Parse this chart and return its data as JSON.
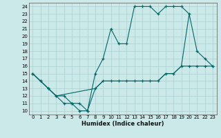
{
  "xlabel": "Humidex (Indice chaleur)",
  "bg_color": "#cce9e9",
  "grid_color": "#aad0d0",
  "line_color": "#006666",
  "xlim": [
    -0.5,
    23.5
  ],
  "ylim": [
    9.5,
    24.5
  ],
  "xticks": [
    0,
    1,
    2,
    3,
    4,
    5,
    6,
    7,
    8,
    9,
    10,
    11,
    12,
    13,
    14,
    15,
    16,
    17,
    18,
    19,
    20,
    21,
    22,
    23
  ],
  "yticks": [
    10,
    11,
    12,
    13,
    14,
    15,
    16,
    17,
    18,
    19,
    20,
    21,
    22,
    23,
    24
  ],
  "line1_x": [
    0,
    1,
    2,
    3,
    4,
    5,
    6,
    7,
    8,
    9,
    10,
    11,
    12,
    13,
    14,
    15,
    16,
    17,
    18,
    19,
    20,
    21,
    22,
    23
  ],
  "line1_y": [
    15,
    14,
    13,
    12,
    11,
    11,
    10,
    10,
    15,
    17,
    21,
    19,
    19,
    24,
    24,
    24,
    23,
    24,
    24,
    24,
    23,
    18,
    17,
    16
  ],
  "line2_x": [
    0,
    2,
    3,
    8,
    9,
    10,
    11,
    12,
    13,
    14,
    15,
    16,
    17,
    18,
    19,
    20
  ],
  "line2_y": [
    15,
    13,
    12,
    13,
    14,
    14,
    14,
    14,
    14,
    14,
    14,
    14,
    15,
    15,
    16,
    23
  ],
  "line3_x": [
    0,
    1,
    2,
    3,
    4,
    5,
    6,
    7,
    8,
    9,
    10,
    11,
    12,
    13,
    14,
    15,
    16,
    17,
    18,
    19,
    20,
    21,
    22,
    23
  ],
  "line3_y": [
    15,
    14,
    13,
    12,
    12,
    11,
    11,
    10,
    13,
    14,
    14,
    14,
    14,
    14,
    14,
    14,
    14,
    15,
    15,
    16,
    16,
    16,
    16,
    16
  ]
}
